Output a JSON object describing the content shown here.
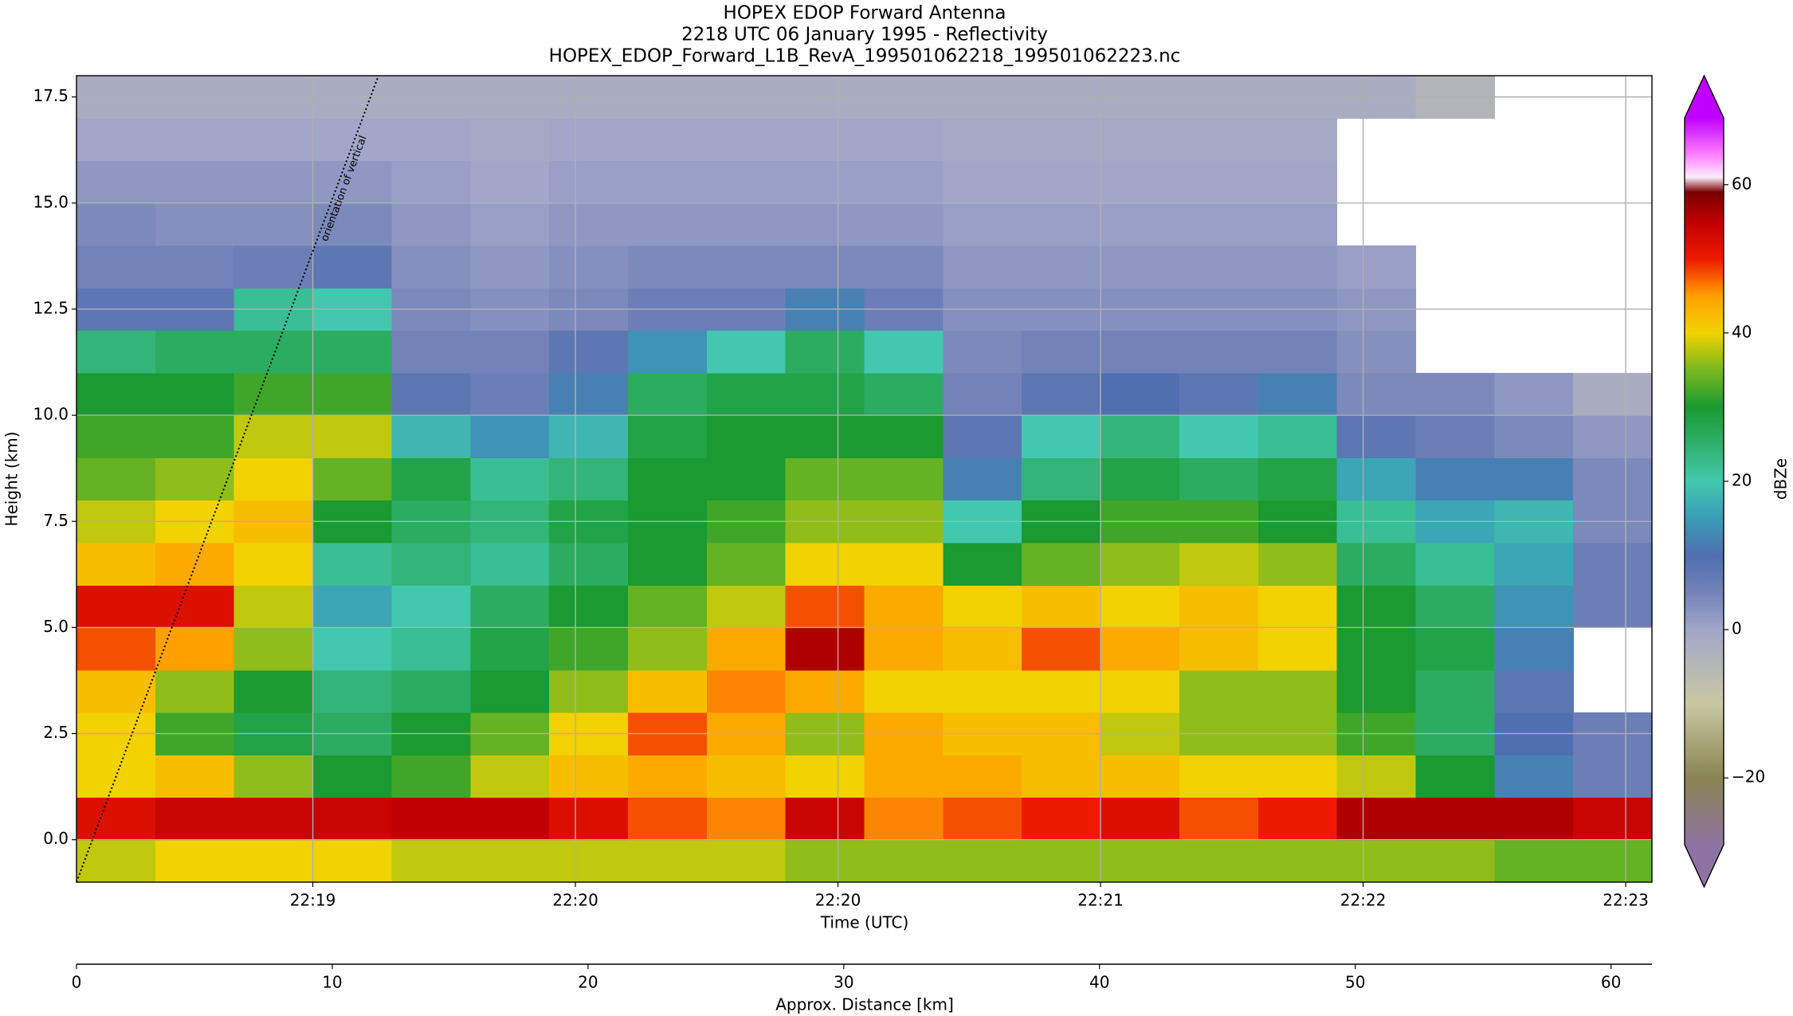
{
  "chart_data": {
    "type": "heatmap",
    "title": "HOPEX EDOP Forward Antenna",
    "subtitle": "2218 UTC 06 January 1995 - Reflectivity",
    "filename": "HOPEX_EDOP_Forward_L1B_RevA_199501062218_199501062223.nc",
    "xlabel": "Time (UTC)",
    "ylabel": "Height (km)",
    "xlim": [
      0,
      300
    ],
    "xticks": [
      {
        "value": 45,
        "label": "22:19"
      },
      {
        "value": 95,
        "label": "22:20"
      },
      {
        "value": 145,
        "label": "22:20"
      },
      {
        "value": 195,
        "label": "22:21"
      },
      {
        "value": 245,
        "label": "22:22"
      },
      {
        "value": 295,
        "label": "22:23"
      }
    ],
    "ylim": [
      -1,
      18
    ],
    "yticks": [
      {
        "value": 0,
        "label": "0.0"
      },
      2.5,
      {
        "value": 5,
        "label": "5.0"
      },
      7.5,
      {
        "value": 10,
        "label": "10.0"
      },
      12.5,
      {
        "value": 15,
        "label": "15.0"
      },
      17.5
    ],
    "grid": true,
    "x_edges": [
      0,
      15,
      30,
      45,
      60,
      75,
      90,
      105,
      120,
      135,
      150,
      165,
      180,
      195,
      210,
      225,
      240,
      255,
      270,
      285,
      300
    ],
    "y_edges": [
      -1,
      0,
      1,
      2,
      3,
      4,
      5,
      6,
      7,
      8,
      9,
      10,
      11,
      12,
      13,
      14,
      15,
      16,
      17,
      18
    ],
    "z": [
      [
        38,
        52,
        40,
        40,
        42,
        48,
        52,
        42,
        38,
        34,
        32,
        30,
        24,
        8,
        5,
        4,
        2,
        0,
        -2
      ],
      [
        40,
        54,
        42,
        32,
        36,
        45,
        52,
        44,
        40,
        36,
        32,
        30,
        26,
        8,
        5,
        3,
        2,
        0,
        -2
      ],
      [
        40,
        54,
        36,
        28,
        30,
        36,
        38,
        40,
        42,
        40,
        38,
        32,
        26,
        22,
        6,
        3,
        2,
        0,
        -2
      ],
      [
        40,
        54,
        30,
        26,
        24,
        20,
        16,
        22,
        30,
        34,
        38,
        32,
        26,
        20,
        8,
        4,
        2,
        0,
        -2
      ],
      [
        38,
        55,
        32,
        30,
        26,
        22,
        20,
        24,
        26,
        28,
        18,
        8,
        5,
        4,
        3,
        2,
        1,
        0,
        -2
      ],
      [
        38,
        55,
        38,
        34,
        30,
        28,
        26,
        22,
        24,
        22,
        14,
        6,
        5,
        3,
        2,
        1,
        0,
        -1,
        -2
      ],
      [
        38,
        52,
        42,
        40,
        36,
        32,
        30,
        26,
        28,
        24,
        18,
        12,
        8,
        4,
        3,
        2,
        1,
        0,
        -2
      ],
      [
        38,
        48,
        44,
        48,
        42,
        36,
        34,
        30,
        30,
        30,
        28,
        26,
        14,
        6,
        4,
        2,
        1,
        0,
        -2
      ],
      [
        38,
        46,
        42,
        44,
        46,
        44,
        38,
        34,
        32,
        30,
        30,
        28,
        20,
        6,
        4,
        2,
        1,
        0,
        -2
      ],
      [
        36,
        54,
        40,
        36,
        44,
        56,
        48,
        40,
        36,
        34,
        30,
        28,
        26,
        12,
        4,
        2,
        1,
        0,
        -2
      ],
      [
        36,
        46,
        44,
        44,
        40,
        44,
        44,
        40,
        36,
        34,
        30,
        26,
        20,
        6,
        4,
        2,
        1,
        0,
        -2
      ],
      [
        36,
        48,
        44,
        42,
        40,
        42,
        40,
        30,
        20,
        12,
        8,
        5,
        4,
        3,
        2,
        1,
        0,
        -1,
        -2
      ],
      [
        36,
        50,
        42,
        42,
        40,
        48,
        42,
        34,
        30,
        24,
        20,
        8,
        5,
        3,
        2,
        1,
        0,
        -1,
        -2
      ],
      [
        36,
        52,
        42,
        38,
        40,
        44,
        40,
        36,
        32,
        28,
        24,
        10,
        5,
        3,
        2,
        1,
        0,
        -1,
        -2
      ],
      [
        36,
        48,
        40,
        36,
        36,
        42,
        42,
        38,
        32,
        26,
        20,
        8,
        5,
        3,
        2,
        1,
        0,
        -1,
        -2
      ],
      [
        36,
        50,
        40,
        36,
        36,
        40,
        40,
        36,
        30,
        28,
        22,
        12,
        5,
        3,
        2,
        1,
        0,
        -1,
        -2
      ],
      [
        36,
        56,
        38,
        32,
        30,
        30,
        30,
        26,
        22,
        16,
        8,
        4,
        3,
        2,
        1,
        null,
        null,
        null,
        -2
      ],
      [
        36,
        56,
        30,
        26,
        26,
        28,
        26,
        22,
        16,
        12,
        6,
        4,
        null,
        null,
        null,
        null,
        null,
        null,
        -4
      ],
      [
        34,
        56,
        12,
        10,
        8,
        12,
        14,
        16,
        18,
        12,
        4,
        2,
        null,
        null,
        null,
        null,
        null,
        null,
        null
      ],
      [
        34,
        54,
        6,
        6,
        null,
        null,
        6,
        6,
        4,
        4,
        2,
        -2,
        null,
        null,
        null,
        null,
        null,
        null,
        null
      ]
    ],
    "colorbar": {
      "label": "dBZe",
      "lim": [
        -29,
        69
      ],
      "ticks": [
        {
          "value": -20,
          "label": "−20"
        },
        0,
        20,
        40,
        60
      ],
      "colorscale": [
        {
          "value": -29,
          "color": "#8e73a2"
        },
        {
          "value": -20,
          "color": "#8a8452"
        },
        {
          "value": -10,
          "color": "#c9c8a2"
        },
        {
          "value": 0,
          "color": "#a2a6c9"
        },
        {
          "value": 5,
          "color": "#7382b8"
        },
        {
          "value": 10,
          "color": "#4f6fb0"
        },
        {
          "value": 15,
          "color": "#3a9cb8"
        },
        {
          "value": 20,
          "color": "#42c8ae"
        },
        {
          "value": 25,
          "color": "#2fb06c"
        },
        {
          "value": 30,
          "color": "#1a9a30"
        },
        {
          "value": 35,
          "color": "#78b820"
        },
        {
          "value": 40,
          "color": "#f2d200"
        },
        {
          "value": 45,
          "color": "#ffa000"
        },
        {
          "value": 50,
          "color": "#ee1a00"
        },
        {
          "value": 55,
          "color": "#c00000"
        },
        {
          "value": 59,
          "color": "#7a0000"
        },
        {
          "value": 61,
          "color": "#fbeefb"
        },
        {
          "value": 64,
          "color": "#ff80ff"
        },
        {
          "value": 69,
          "color": "#c000ff"
        }
      ]
    },
    "secondary_x_axis": {
      "label": "Approx. Distance [km]",
      "xlim": [
        0,
        61.6
      ],
      "xticks": [
        0,
        10,
        20,
        30,
        40,
        50,
        60
      ]
    },
    "annotation": {
      "text": "orientation of vertical",
      "x": [
        0,
        57.5
      ],
      "y": [
        -1,
        18
      ]
    }
  }
}
